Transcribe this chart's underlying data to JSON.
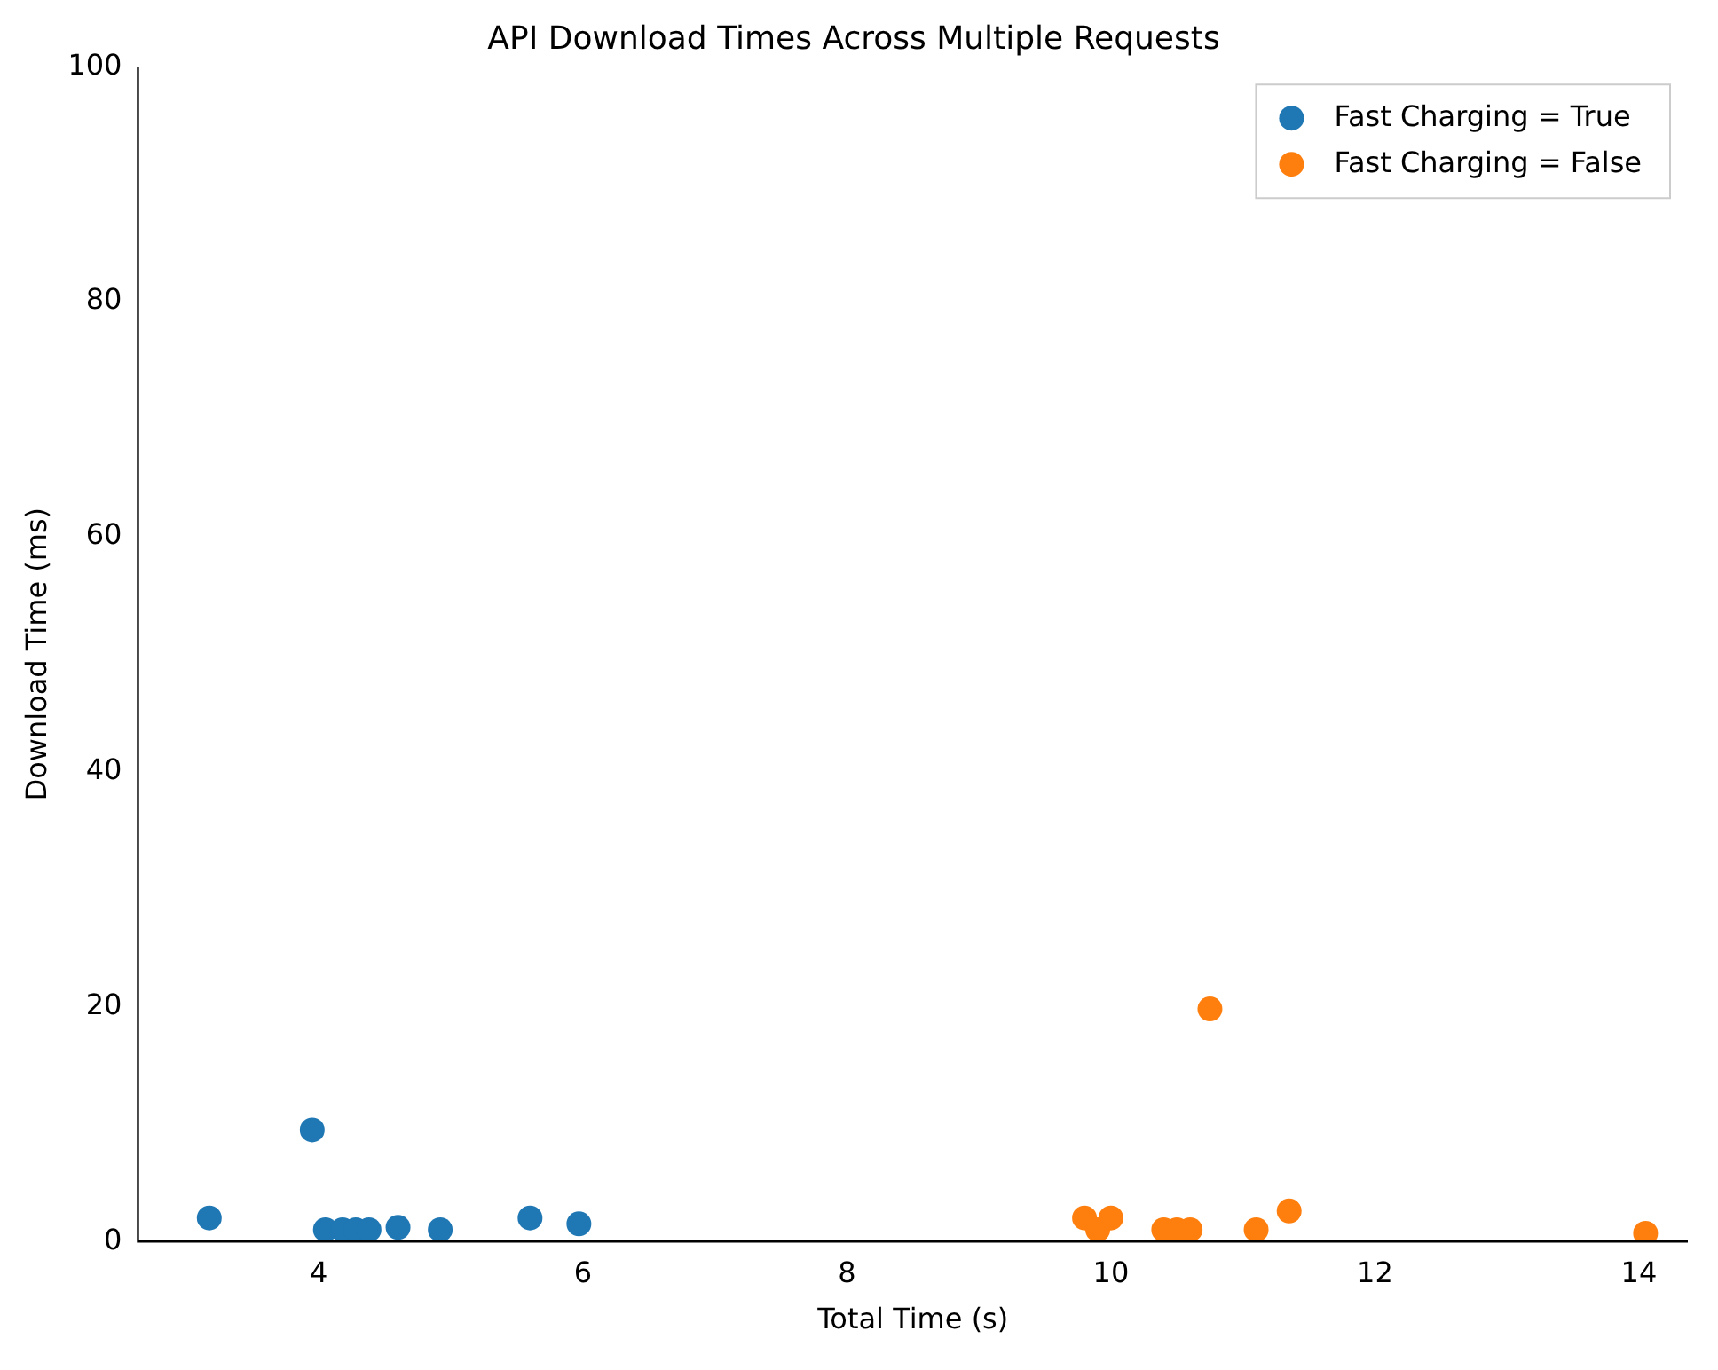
{
  "chart_data": {
    "type": "scatter",
    "title": "API Download Times Across Multiple Requests",
    "xlabel": "Total Time (s)",
    "ylabel": "Download Time (ms)",
    "series": [
      {
        "name": "Fast Charging = True",
        "color": "#1f77b4",
        "x": [
          3.17,
          3.95,
          4.05,
          4.18,
          4.28,
          4.38,
          4.6,
          4.92,
          5.6,
          5.97
        ],
        "values": [
          2,
          9.5,
          1,
          1,
          1,
          1,
          1.2,
          1,
          2,
          1.5
        ]
      },
      {
        "name": "Fast Charging = False",
        "color": "#ff7f0e",
        "x": [
          9.8,
          9.9,
          10.0,
          10.4,
          10.5,
          10.6,
          10.75,
          11.1,
          11.35,
          14.05
        ],
        "values": [
          2,
          1,
          2,
          1,
          1,
          1,
          19.8,
          1,
          2.6,
          0.7
        ]
      }
    ],
    "xlim": [
      2.63,
      14.37
    ],
    "xticks": [
      4,
      6,
      8,
      10,
      12,
      14
    ],
    "ylim": [
      0,
      100
    ],
    "yticks": [
      0,
      20,
      40,
      60,
      80,
      100
    ],
    "legend": "top right",
    "marker": "circle",
    "grid": false
  }
}
